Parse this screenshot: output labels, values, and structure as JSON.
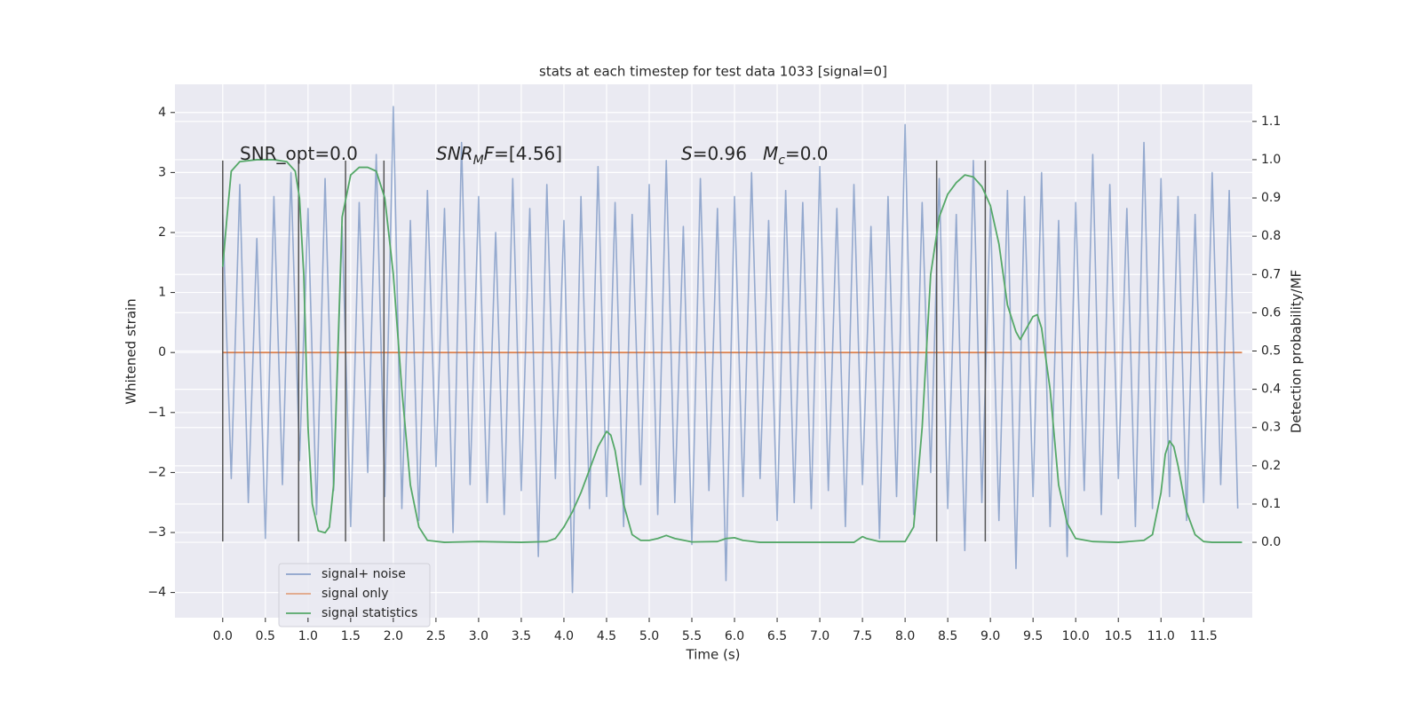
{
  "chart_data": {
    "type": "line",
    "title": "stats at each timestep for test data 1033 [signal=0]",
    "xlabel": "Time (s)",
    "ylabel": "Whitened strain",
    "y2label": "Detection probability/MF",
    "annotations": {
      "snr_opt": "SNR_opt=0.0",
      "snr_mf": [
        "SNR",
        "M",
        "F",
        "=[4.56]"
      ],
      "s": [
        "S",
        "=0.96"
      ],
      "mc": [
        "M",
        "c",
        "=0.0"
      ]
    },
    "xlim": [
      -0.56,
      12.07
    ],
    "ylim": [
      -4.42,
      4.47
    ],
    "y2lim": [
      -0.197,
      1.197
    ],
    "xticks": [
      {
        "value": 0,
        "label": "0.0"
      },
      0.5,
      {
        "value": 1,
        "label": "1.0"
      },
      1.5,
      {
        "value": 2,
        "label": "2.0"
      },
      2.5,
      {
        "value": 3,
        "label": "3.0"
      },
      3.5,
      {
        "value": 4,
        "label": "4.0"
      },
      4.5,
      {
        "value": 5,
        "label": "5.0"
      },
      5.5,
      {
        "value": 6,
        "label": "6.0"
      },
      6.5,
      {
        "value": 7,
        "label": "7.0"
      },
      7.5,
      {
        "value": 8,
        "label": "8.0"
      },
      8.5,
      {
        "value": 9,
        "label": "9.0"
      },
      9.5,
      {
        "value": 10,
        "label": "10.0"
      },
      10.5,
      {
        "value": 11,
        "label": "11.0"
      },
      11.5
    ],
    "yticks": [
      {
        "value": -4,
        "label": "−4"
      },
      {
        "value": -3,
        "label": "−3"
      },
      {
        "value": -2,
        "label": "−2"
      },
      {
        "value": -1,
        "label": "−1"
      },
      0,
      1,
      2,
      3,
      4
    ],
    "y2ticks": [
      {
        "value": 0,
        "label": "0.0"
      },
      0.1,
      0.2,
      0.3,
      0.4,
      0.5,
      0.6,
      0.7,
      0.8,
      0.9,
      {
        "value": 1,
        "label": "1.0"
      },
      1.1
    ],
    "grid": true,
    "legend": "lower left",
    "markers": {
      "x": [
        0.0,
        0.89,
        1.44,
        1.89,
        8.37,
        8.94
      ],
      "range": [
        -3.15,
        3.2
      ],
      "color": "#555555"
    },
    "series": [
      {
        "name": "signal+ noise",
        "color": "#4c72b0",
        "x": [
          0.0,
          0.1,
          0.2,
          0.3,
          0.4,
          0.5,
          0.6,
          0.7,
          0.8,
          0.9,
          1.0,
          1.1,
          1.2,
          1.3,
          1.4,
          1.5,
          1.6,
          1.7,
          1.8,
          1.9,
          2.0,
          2.1,
          2.2,
          2.3,
          2.4,
          2.5,
          2.6,
          2.7,
          2.8,
          2.9,
          3.0,
          3.1,
          3.2,
          3.3,
          3.4,
          3.5,
          3.6,
          3.7,
          3.8,
          3.9,
          4.0,
          4.1,
          4.2,
          4.3,
          4.4,
          4.5,
          4.6,
          4.7,
          4.8,
          4.9,
          5.0,
          5.1,
          5.2,
          5.3,
          5.4,
          5.5,
          5.6,
          5.7,
          5.8,
          5.9,
          6.0,
          6.1,
          6.2,
          6.3,
          6.4,
          6.5,
          6.6,
          6.7,
          6.8,
          6.9,
          7.0,
          7.1,
          7.2,
          7.3,
          7.4,
          7.5,
          7.6,
          7.7,
          7.8,
          7.9,
          8.0,
          8.1,
          8.2,
          8.3,
          8.4,
          8.5,
          8.6,
          8.7,
          8.8,
          8.9,
          9.0,
          9.1,
          9.2,
          9.3,
          9.4,
          9.5,
          9.6,
          9.7,
          9.8,
          9.9,
          10.0,
          10.1,
          10.2,
          10.3,
          10.4,
          10.5,
          10.6,
          10.7,
          10.8,
          10.9,
          11.0,
          11.1,
          11.2,
          11.3,
          11.4,
          11.5,
          11.6,
          11.7,
          11.8,
          11.9
        ],
        "values": [
          2.3,
          -2.1,
          2.8,
          -2.5,
          1.9,
          -3.1,
          2.6,
          -2.2,
          3.0,
          -1.8,
          2.4,
          -2.7,
          2.9,
          -2.3,
          2.1,
          -2.9,
          2.5,
          -2.0,
          3.3,
          -2.4,
          4.1,
          -2.6,
          2.2,
          -2.8,
          2.7,
          -1.9,
          2.4,
          -3.0,
          3.5,
          -2.2,
          2.6,
          -2.5,
          2.0,
          -2.7,
          2.9,
          -2.3,
          2.4,
          -3.4,
          2.8,
          -2.1,
          2.2,
          -4.0,
          2.6,
          -2.6,
          3.1,
          -2.4,
          2.5,
          -2.9,
          2.3,
          -2.2,
          2.8,
          -2.7,
          3.2,
          -2.5,
          2.1,
          -3.2,
          2.9,
          -2.3,
          2.4,
          -3.8,
          2.6,
          -2.4,
          3.0,
          -2.1,
          2.2,
          -2.8,
          2.7,
          -2.5,
          2.5,
          -2.6,
          3.1,
          -2.3,
          2.4,
          -2.9,
          2.8,
          -2.2,
          2.1,
          -3.1,
          2.6,
          -2.4,
          3.8,
          -2.7,
          2.5,
          -2.0,
          2.9,
          -2.6,
          2.3,
          -3.3,
          3.2,
          -2.5,
          2.4,
          -2.8,
          2.7,
          -3.6,
          2.6,
          -2.4,
          3.0,
          -2.9,
          2.2,
          -3.4,
          2.5,
          -2.3,
          3.3,
          -2.7,
          2.8,
          -2.1,
          2.4,
          -2.9,
          3.5,
          -2.6,
          2.9,
          -2.4,
          2.6,
          -2.8,
          2.3,
          -2.5,
          3.0,
          -2.2,
          2.7,
          -2.6
        ]
      },
      {
        "name": "signal only",
        "color": "#dd8452",
        "x": [
          0.0,
          11.95
        ],
        "values": [
          0,
          0
        ]
      },
      {
        "name": "signal statistics",
        "color": "#55a868",
        "axis": "y2",
        "x": [
          0.0,
          0.05,
          0.1,
          0.2,
          0.4,
          0.6,
          0.75,
          0.85,
          0.9,
          0.95,
          1.0,
          1.05,
          1.12,
          1.2,
          1.25,
          1.3,
          1.35,
          1.4,
          1.5,
          1.6,
          1.7,
          1.8,
          1.9,
          2.0,
          2.1,
          2.2,
          2.3,
          2.4,
          2.6,
          3.0,
          3.5,
          3.8,
          3.9,
          4.0,
          4.1,
          4.2,
          4.3,
          4.4,
          4.5,
          4.55,
          4.6,
          4.7,
          4.8,
          4.9,
          5.0,
          5.1,
          5.2,
          5.3,
          5.5,
          5.8,
          5.9,
          6.0,
          6.1,
          6.3,
          7.0,
          7.4,
          7.5,
          7.55,
          7.7,
          8.0,
          8.1,
          8.2,
          8.3,
          8.4,
          8.5,
          8.6,
          8.7,
          8.8,
          8.9,
          9.0,
          9.1,
          9.2,
          9.3,
          9.35,
          9.4,
          9.5,
          9.55,
          9.6,
          9.7,
          9.8,
          9.9,
          10.0,
          10.2,
          10.5,
          10.8,
          10.9,
          11.0,
          11.05,
          11.1,
          11.15,
          11.2,
          11.3,
          11.4,
          11.5,
          11.6,
          11.95
        ],
        "values": [
          0.72,
          0.85,
          0.97,
          0.995,
          1.0,
          1.0,
          0.995,
          0.97,
          0.9,
          0.7,
          0.3,
          0.1,
          0.03,
          0.025,
          0.04,
          0.15,
          0.5,
          0.85,
          0.96,
          0.98,
          0.98,
          0.97,
          0.9,
          0.7,
          0.4,
          0.15,
          0.04,
          0.005,
          0.0,
          0.002,
          0.0,
          0.002,
          0.01,
          0.04,
          0.08,
          0.13,
          0.19,
          0.25,
          0.29,
          0.28,
          0.24,
          0.1,
          0.02,
          0.005,
          0.005,
          0.01,
          0.018,
          0.01,
          0.001,
          0.002,
          0.01,
          0.012,
          0.005,
          0.0,
          0.0,
          0.0,
          0.015,
          0.01,
          0.002,
          0.002,
          0.04,
          0.3,
          0.7,
          0.85,
          0.91,
          0.94,
          0.96,
          0.955,
          0.93,
          0.88,
          0.78,
          0.62,
          0.55,
          0.53,
          0.55,
          0.59,
          0.595,
          0.56,
          0.4,
          0.15,
          0.05,
          0.01,
          0.002,
          0.0,
          0.005,
          0.02,
          0.13,
          0.23,
          0.265,
          0.25,
          0.2,
          0.08,
          0.02,
          0.002,
          0.0,
          0.0
        ]
      }
    ]
  }
}
